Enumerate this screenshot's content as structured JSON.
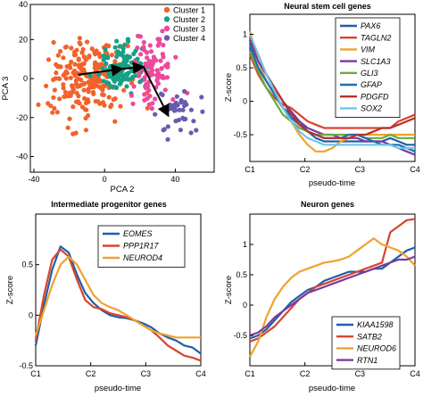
{
  "chart_data": [
    {
      "id": "pca",
      "type": "scatter",
      "title": "",
      "xlabel": "PCA 2",
      "ylabel": "PCA 3",
      "xlim": [
        -42,
        62
      ],
      "ylim": [
        -48,
        38
      ],
      "xticks": [
        -40,
        0,
        40
      ],
      "yticks": [
        -40,
        -20,
        0,
        20,
        40
      ],
      "legend": [
        {
          "name": "Cluster 1",
          "color": "#f2622b"
        },
        {
          "name": "Cluster 2",
          "color": "#16a085"
        },
        {
          "name": "Cluster 3",
          "color": "#ec4a9c"
        },
        {
          "name": "Cluster 4",
          "color": "#6a5bb0"
        }
      ],
      "clusters": [
        {
          "name": "Cluster 1",
          "color": "#f2622b",
          "center": [
            -10,
            0
          ],
          "spread": [
            11,
            10
          ],
          "count": 230
        },
        {
          "name": "Cluster 2",
          "color": "#16a085",
          "center": [
            10,
            5
          ],
          "spread": [
            6,
            6
          ],
          "count": 110
        },
        {
          "name": "Cluster 3",
          "color": "#ec4a9c",
          "center": [
            28,
            5
          ],
          "spread": [
            6,
            9
          ],
          "count": 90
        },
        {
          "name": "Cluster 4",
          "color": "#6a5bb0",
          "center": [
            43,
            -18
          ],
          "spread": [
            7,
            6
          ],
          "count": 40
        }
      ],
      "trajectory": [
        [
          -15,
          2
        ],
        [
          10,
          5
        ],
        [
          22,
          6
        ],
        [
          36,
          -19
        ]
      ]
    },
    {
      "id": "nsc",
      "type": "line",
      "title": "Neural stem cell genes",
      "xlabel": "pseudo-time",
      "ylabel": "Z-score",
      "x_ticklabels": [
        "C1",
        "C2",
        "C3",
        "C4"
      ],
      "xlim": [
        0,
        1
      ],
      "ylim": [
        -0.9,
        1.3
      ],
      "yticks": [
        -0.5,
        0,
        0.5,
        1
      ],
      "y_ticklabels": [
        "-0.5",
        "0",
        "0.5",
        "1"
      ],
      "x": [
        0,
        0.05,
        0.1,
        0.15,
        0.2,
        0.25,
        0.3,
        0.35,
        0.4,
        0.45,
        0.5,
        0.55,
        0.6,
        0.65,
        0.7,
        0.75,
        0.8,
        0.85,
        0.9,
        0.95,
        1.0
      ],
      "series": [
        {
          "name": "PAX6",
          "color": "#1f5fa8",
          "values": [
            0.8,
            0.5,
            0.3,
            0.1,
            -0.1,
            -0.2,
            -0.3,
            -0.45,
            -0.55,
            -0.6,
            -0.6,
            -0.6,
            -0.6,
            -0.6,
            -0.6,
            -0.6,
            -0.6,
            -0.55,
            -0.6,
            -0.65,
            -0.65
          ]
        },
        {
          "name": "TAGLN2",
          "color": "#d9442e",
          "values": [
            0.7,
            0.4,
            0.2,
            0.05,
            -0.05,
            -0.1,
            -0.2,
            -0.3,
            -0.35,
            -0.4,
            -0.4,
            -0.4,
            -0.4,
            -0.4,
            -0.4,
            -0.4,
            -0.4,
            -0.4,
            -0.3,
            -0.25,
            -0.2
          ]
        },
        {
          "name": "VIM",
          "color": "#f0a22e",
          "values": [
            1.05,
            0.6,
            0.3,
            0.1,
            -0.1,
            -0.3,
            -0.5,
            -0.65,
            -0.75,
            -0.75,
            -0.7,
            -0.6,
            -0.55,
            -0.5,
            -0.5,
            -0.5,
            -0.5,
            -0.5,
            -0.5,
            -0.5,
            -0.5
          ]
        },
        {
          "name": "SLC1A3",
          "color": "#7a3aa0",
          "values": [
            0.9,
            0.6,
            0.4,
            0.2,
            0.0,
            -0.15,
            -0.3,
            -0.4,
            -0.45,
            -0.5,
            -0.5,
            -0.55,
            -0.55,
            -0.55,
            -0.6,
            -0.6,
            -0.6,
            -0.65,
            -0.7,
            -0.75,
            -0.8
          ]
        },
        {
          "name": "GLI3",
          "color": "#6bab3c",
          "values": [
            0.75,
            0.45,
            0.2,
            0.0,
            -0.2,
            -0.3,
            -0.4,
            -0.45,
            -0.5,
            -0.5,
            -0.5,
            -0.5,
            -0.5,
            -0.5,
            -0.55,
            -0.55,
            -0.55,
            -0.5,
            -0.55,
            -0.55,
            -0.55
          ]
        },
        {
          "name": "GFAP",
          "color": "#1f6fb5",
          "values": [
            0.85,
            0.5,
            0.3,
            0.1,
            -0.1,
            -0.25,
            -0.35,
            -0.45,
            -0.5,
            -0.55,
            -0.55,
            -0.55,
            -0.5,
            -0.5,
            -0.55,
            -0.6,
            -0.65,
            -0.65,
            -0.65,
            -0.7,
            -0.75
          ]
        },
        {
          "name": "PDGFD",
          "color": "#b5332a",
          "values": [
            0.95,
            0.7,
            0.4,
            0.2,
            0.0,
            -0.2,
            -0.35,
            -0.45,
            -0.5,
            -0.55,
            -0.55,
            -0.55,
            -0.55,
            -0.5,
            -0.5,
            -0.45,
            -0.4,
            -0.4,
            -0.35,
            -0.3,
            -0.25
          ]
        },
        {
          "name": "SOX2",
          "color": "#6fc5e8",
          "values": [
            1.0,
            0.7,
            0.4,
            0.15,
            -0.1,
            -0.3,
            -0.45,
            -0.55,
            -0.6,
            -0.65,
            -0.65,
            -0.65,
            -0.65,
            -0.65,
            -0.65,
            -0.65,
            -0.65,
            -0.65,
            -0.7,
            -0.7,
            -0.7
          ]
        }
      ]
    },
    {
      "id": "ipc",
      "type": "line",
      "title": "Intermediate progenitor genes",
      "xlabel": "pseudo-time",
      "ylabel": "Z-score",
      "x_ticklabels": [
        "C1",
        "C2",
        "C3",
        "C4"
      ],
      "xlim": [
        0,
        1
      ],
      "ylim": [
        -0.5,
        1.0
      ],
      "yticks": [
        -0.5,
        0,
        0.5
      ],
      "y_ticklabels": [
        "-0.5",
        "0",
        "0.5"
      ],
      "x": [
        0,
        0.05,
        0.1,
        0.15,
        0.2,
        0.25,
        0.3,
        0.35,
        0.4,
        0.45,
        0.5,
        0.55,
        0.6,
        0.65,
        0.7,
        0.75,
        0.8,
        0.85,
        0.9,
        0.95,
        1.0
      ],
      "series": [
        {
          "name": "EOMES",
          "color": "#1f5fa8",
          "values": [
            -0.3,
            0.1,
            0.45,
            0.68,
            0.62,
            0.4,
            0.22,
            0.12,
            0.05,
            0.0,
            -0.02,
            -0.03,
            -0.05,
            -0.08,
            -0.12,
            -0.18,
            -0.22,
            -0.25,
            -0.3,
            -0.32,
            -0.38
          ]
        },
        {
          "name": "PPP1R17",
          "color": "#d9442e",
          "values": [
            -0.25,
            0.2,
            0.55,
            0.65,
            0.58,
            0.35,
            0.15,
            0.08,
            0.06,
            0.02,
            0.0,
            -0.02,
            -0.05,
            -0.1,
            -0.15,
            -0.22,
            -0.3,
            -0.35,
            -0.4,
            -0.42,
            -0.45
          ]
        },
        {
          "name": "NEUROD4",
          "color": "#f0a22e",
          "values": [
            -0.2,
            0.05,
            0.3,
            0.5,
            0.58,
            0.5,
            0.35,
            0.2,
            0.12,
            0.08,
            0.05,
            0.0,
            -0.05,
            -0.1,
            -0.15,
            -0.18,
            -0.2,
            -0.22,
            -0.22,
            -0.22,
            -0.22
          ]
        }
      ]
    },
    {
      "id": "neuron",
      "type": "line",
      "title": "Neuron genes",
      "xlabel": "pseudo-time",
      "ylabel": "Z-score",
      "x_ticklabels": [
        "C1",
        "C2",
        "C3",
        "C4"
      ],
      "xlim": [
        0,
        1
      ],
      "ylim": [
        -1.0,
        1.5
      ],
      "yticks": [
        -0.5,
        0,
        0.5,
        1
      ],
      "y_ticklabels": [
        "-0.5",
        "0",
        "0.5",
        "1"
      ],
      "x": [
        0,
        0.05,
        0.1,
        0.15,
        0.2,
        0.25,
        0.3,
        0.35,
        0.4,
        0.45,
        0.5,
        0.55,
        0.6,
        0.65,
        0.7,
        0.75,
        0.8,
        0.85,
        0.9,
        0.95,
        1.0
      ],
      "series": [
        {
          "name": "KIAA1598",
          "color": "#1f5fa8",
          "values": [
            -0.55,
            -0.5,
            -0.4,
            -0.25,
            -0.1,
            0.05,
            0.15,
            0.25,
            0.3,
            0.4,
            0.45,
            0.5,
            0.55,
            0.55,
            0.55,
            0.6,
            0.6,
            0.7,
            0.8,
            0.9,
            0.95
          ]
        },
        {
          "name": "SATB2",
          "color": "#d9442e",
          "values": [
            -0.6,
            -0.55,
            -0.45,
            -0.35,
            -0.2,
            -0.05,
            0.1,
            0.2,
            0.3,
            0.35,
            0.4,
            0.45,
            0.5,
            0.55,
            0.6,
            0.65,
            0.7,
            1.2,
            1.3,
            1.4,
            1.42
          ]
        },
        {
          "name": "NEUROD6",
          "color": "#f0a22e",
          "values": [
            -0.85,
            -0.6,
            -0.2,
            0.1,
            0.3,
            0.45,
            0.55,
            0.6,
            0.65,
            0.7,
            0.72,
            0.75,
            0.8,
            0.9,
            1.0,
            1.1,
            1.0,
            0.95,
            0.9,
            0.8,
            0.65
          ]
        },
        {
          "name": "RTN1",
          "color": "#7a3aa0",
          "values": [
            -0.5,
            -0.45,
            -0.35,
            -0.2,
            -0.1,
            0.0,
            0.1,
            0.2,
            0.25,
            0.3,
            0.35,
            0.4,
            0.45,
            0.5,
            0.55,
            0.6,
            0.65,
            0.7,
            0.75,
            0.75,
            0.8
          ]
        }
      ]
    }
  ]
}
